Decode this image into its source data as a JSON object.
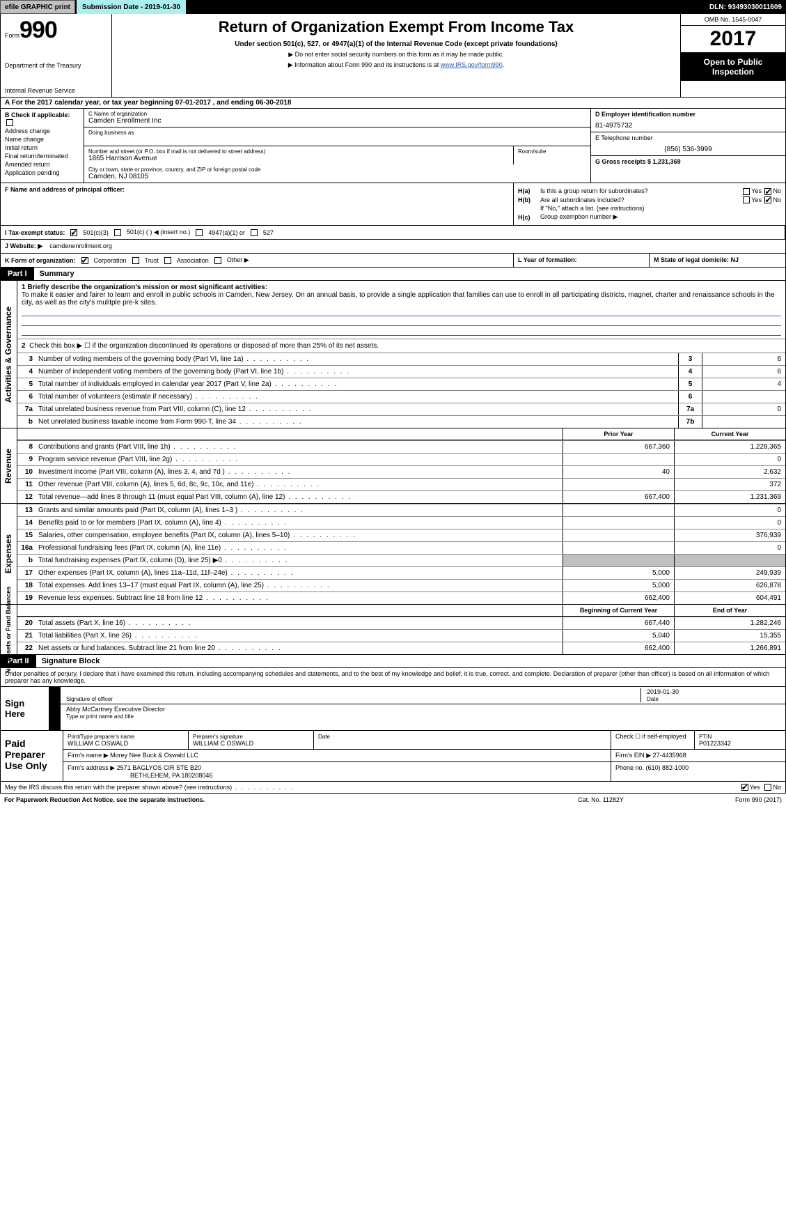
{
  "topbar": {
    "efile": "efile GRAPHIC print",
    "submission": "Submission Date - 2019-01-30",
    "dln": "DLN: 93493030011609"
  },
  "header": {
    "form_word": "Form",
    "form_num": "990",
    "dept1": "Department of the Treasury",
    "dept2": "Internal Revenue Service",
    "title": "Return of Organization Exempt From Income Tax",
    "subtitle1": "Under section 501(c), 527, or 4947(a)(1) of the Internal Revenue Code (except private foundations)",
    "subtitle2a": "▶ Do not enter social security numbers on this form as it may be made public.",
    "subtitle2b": "▶ Information about Form 990 and its instructions is at ",
    "irs_link": "www.IRS.gov/form990",
    "omb": "OMB No. 1545-0047",
    "year": "2017",
    "open1": "Open to Public",
    "open2": "Inspection"
  },
  "rowA": "A   For the 2017 calendar year, or tax year beginning 07-01-2017        , and ending 06-30-2018",
  "colB": {
    "title": "B Check if applicable:",
    "items": [
      "Address change",
      "Name change",
      "Initial return",
      "Final return/terminated",
      "Amended return",
      "Application pending"
    ]
  },
  "colC": {
    "name_label": "C Name of organization",
    "name": "Camden Enrollment Inc",
    "dba_label": "Doing business as",
    "addr_label": "Number and street (or P.O. box if mail is not delivered to street address)",
    "room_label": "Room/suite",
    "addr": "1865 Harrison Avenue",
    "city_label": "City or town, state or province, country, and ZIP or foreign postal code",
    "city": "Camden, NJ  08105",
    "f_label": "F Name and address of principal officer:"
  },
  "colDEG": {
    "d_label": "D Employer identification number",
    "d_val": "81-4975732",
    "e_label": "E Telephone number",
    "e_val": "(856) 536-3999",
    "g_label": "G Gross receipts $ 1,231,369"
  },
  "rowH": {
    "ha_l": "H(a)",
    "ha_t": "Is this a group return for subordinates?",
    "hb_l": "H(b)",
    "hb_t": "Are all subordinates included?",
    "hb_note": "If \"No,\" attach a list. (see instructions)",
    "hc_l": "H(c)",
    "hc_t": "Group exemption number ▶",
    "yes": "Yes",
    "no": "No"
  },
  "rowI": {
    "label": "I   Tax-exempt status:",
    "o1": "501(c)(3)",
    "o2": "501(c) (  ) ◀ (insert no.)",
    "o3": "4947(a)(1) or",
    "o4": "527"
  },
  "rowJ": {
    "label": "J   Website: ▶",
    "val": "camdenenrollment.org"
  },
  "rowK": {
    "label": "K Form of organization:",
    "o1": "Corporation",
    "o2": "Trust",
    "o3": "Association",
    "o4": "Other ▶"
  },
  "rowL": {
    "label": "L Year of formation:"
  },
  "rowM": {
    "label": "M State of legal domicile: NJ"
  },
  "parts": {
    "p1": "Part I",
    "p1t": "Summary",
    "p2": "Part II",
    "p2t": "Signature Block"
  },
  "strips": {
    "act": "Activities & Governance",
    "rev": "Revenue",
    "exp": "Expenses",
    "net": "Net Assets or\nFund Balances"
  },
  "narr": {
    "l1": "1   Briefly describe the organization's mission or most significant activities:",
    "l1t": "To make it easier and fairer to learn and enroll in public schools in Camden, New Jersey. On an annual basis, to provide a single application that families can use to enroll in all participating districts, magnet, charter and renaissance schools in the city, as well as the city's mulitple pre-k sites.",
    "l2": "Check this box ▶ ☐ if the organization discontinued its operations or disposed of more than 25% of its net assets."
  },
  "govlines": [
    {
      "n": "3",
      "t": "Number of voting members of the governing body (Part VI, line 1a)",
      "b": "3",
      "v": "6"
    },
    {
      "n": "4",
      "t": "Number of independent voting members of the governing body (Part VI, line 1b)",
      "b": "4",
      "v": "6"
    },
    {
      "n": "5",
      "t": "Total number of individuals employed in calendar year 2017 (Part V, line 2a)",
      "b": "5",
      "v": "4"
    },
    {
      "n": "6",
      "t": "Total number of volunteers (estimate if necessary)",
      "b": "6",
      "v": ""
    },
    {
      "n": "7a",
      "t": "Total unrelated business revenue from Part VIII, column (C), line 12",
      "b": "7a",
      "v": "0"
    },
    {
      "n": "b",
      "t": "Net unrelated business taxable income from Form 990-T, line 34",
      "b": "7b",
      "v": ""
    }
  ],
  "colhdr": {
    "prior": "Prior Year",
    "curr": "Current Year",
    "beg": "Beginning of Current Year",
    "end": "End of Year"
  },
  "revlines": [
    {
      "n": "8",
      "t": "Contributions and grants (Part VIII, line 1h)",
      "p": "667,360",
      "c": "1,228,365"
    },
    {
      "n": "9",
      "t": "Program service revenue (Part VIII, line 2g)",
      "p": "",
      "c": "0"
    },
    {
      "n": "10",
      "t": "Investment income (Part VIII, column (A), lines 3, 4, and 7d )",
      "p": "40",
      "c": "2,632"
    },
    {
      "n": "11",
      "t": "Other revenue (Part VIII, column (A), lines 5, 6d, 8c, 9c, 10c, and 11e)",
      "p": "",
      "c": "372"
    },
    {
      "n": "12",
      "t": "Total revenue—add lines 8 through 11 (must equal Part VIII, column (A), line 12)",
      "p": "667,400",
      "c": "1,231,369"
    }
  ],
  "explines": [
    {
      "n": "13",
      "t": "Grants and similar amounts paid (Part IX, column (A), lines 1–3 )",
      "p": "",
      "c": "0"
    },
    {
      "n": "14",
      "t": "Benefits paid to or for members (Part IX, column (A), line 4)",
      "p": "",
      "c": "0"
    },
    {
      "n": "15",
      "t": "Salaries, other compensation, employee benefits (Part IX, column (A), lines 5–10)",
      "p": "",
      "c": "376,939"
    },
    {
      "n": "16a",
      "t": "Professional fundraising fees (Part IX, column (A), line 11e)",
      "p": "",
      "c": "0"
    },
    {
      "n": "b",
      "t": "Total fundraising expenses (Part IX, column (D), line 25) ▶0",
      "p": "GRAY",
      "c": "GRAY"
    },
    {
      "n": "17",
      "t": "Other expenses (Part IX, column (A), lines 11a–11d, 11f–24e)",
      "p": "5,000",
      "c": "249,939"
    },
    {
      "n": "18",
      "t": "Total expenses. Add lines 13–17 (must equal Part IX, column (A), line 25)",
      "p": "5,000",
      "c": "626,878"
    },
    {
      "n": "19",
      "t": "Revenue less expenses. Subtract line 18 from line 12",
      "p": "662,400",
      "c": "604,491"
    }
  ],
  "netlines": [
    {
      "n": "20",
      "t": "Total assets (Part X, line 16)",
      "p": "667,440",
      "c": "1,282,246"
    },
    {
      "n": "21",
      "t": "Total liabilities (Part X, line 26)",
      "p": "5,040",
      "c": "15,355"
    },
    {
      "n": "22",
      "t": "Net assets or fund balances. Subtract line 21 from line 20",
      "p": "662,400",
      "c": "1,266,891"
    }
  ],
  "sig": {
    "decl": "Under penalties of perjury, I declare that I have examined this return, including accompanying schedules and statements, and to the best of my knowledge and belief, it is true, correct, and complete. Declaration of preparer (other than officer) is based on all information of which preparer has any knowledge.",
    "sign_here": "Sign Here",
    "sig_officer": "Signature of officer",
    "date_l": "Date",
    "date_v": "2019-01-30",
    "name": "Abby McCartney  Executive Director",
    "name_l": "Type or print name and title"
  },
  "prep": {
    "label": "Paid Preparer Use Only",
    "pt_l": "Print/Type preparer's name",
    "pt_v": "WILLIAM C OSWALD",
    "ps_l": "Preparer's signature",
    "ps_v": "WILLIAM C OSWALD",
    "dt_l": "Date",
    "se_l": "Check ☐ if self-employed",
    "ptin_l": "PTIN",
    "ptin_v": "P01223342",
    "fn_l": "Firm's name    ▶",
    "fn_v": "Morey Nee Buck & Oswald LLC",
    "fa_l": "Firm's address ▶",
    "fa_v1": "2571 BAGLYOS CIR STE B20",
    "fa_v2": "BETHLEHEM, PA  180208046",
    "fe_l": "Firm's EIN ▶ 27-4435968",
    "fp_l": "Phone no. (610) 882-1000"
  },
  "footer": {
    "discuss": "May the IRS discuss this return with the preparer shown above? (see instructions)",
    "yes": "Yes",
    "no": "No",
    "pra": "For Paperwork Reduction Act Notice, see the separate instructions.",
    "cat": "Cat. No. 11282Y",
    "form": "Form 990 (2017)"
  }
}
